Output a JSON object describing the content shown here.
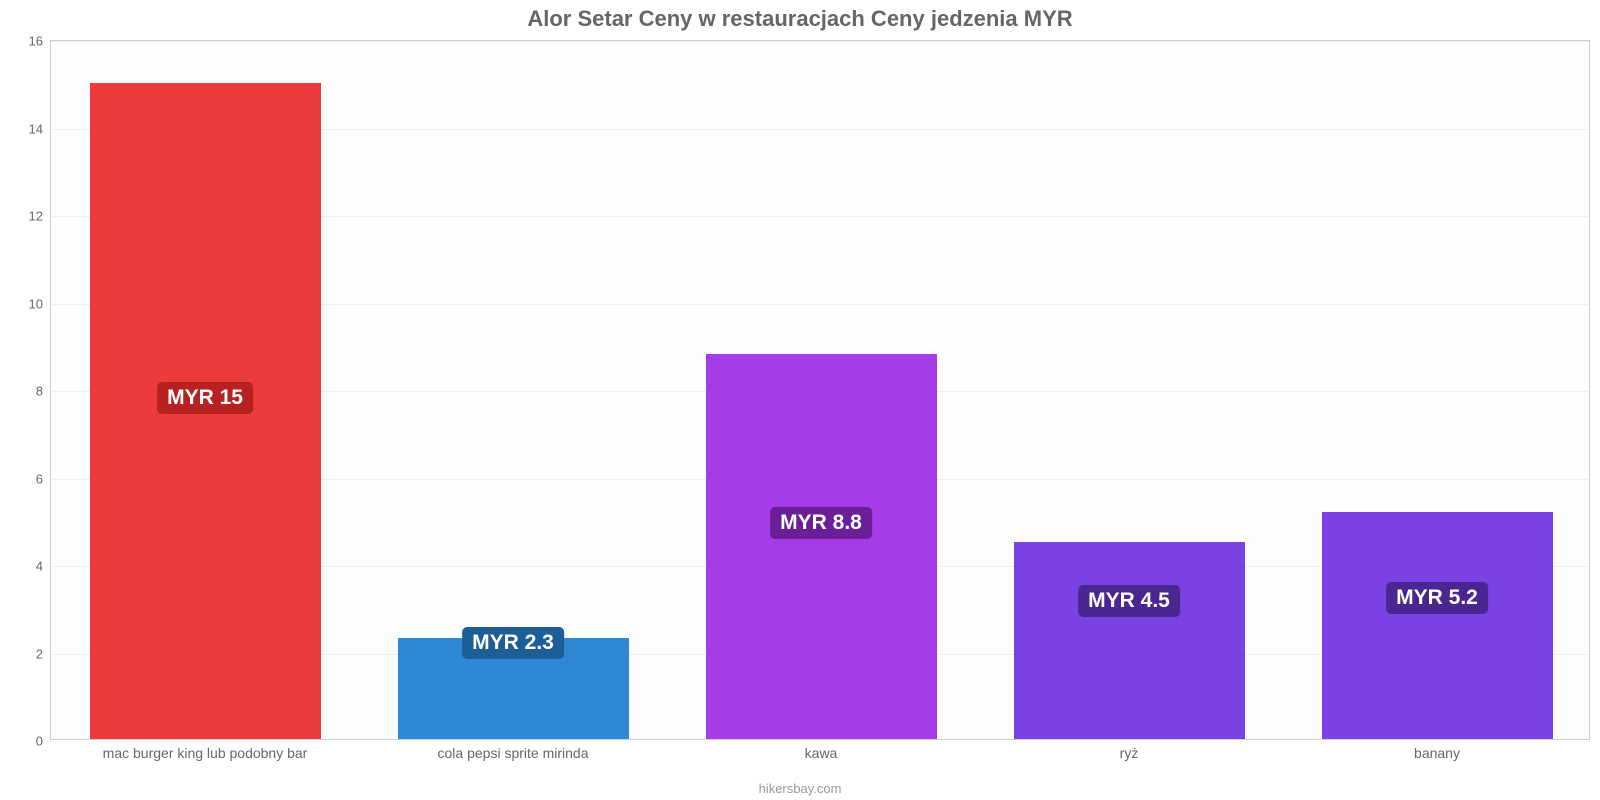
{
  "chart": {
    "type": "bar",
    "title": "Alor Setar Ceny w restauracjach Ceny jedzenia MYR",
    "title_fontsize": 22,
    "title_color": "#666666",
    "background_color": "#fdfdfd",
    "border_color": "#d0d0d0",
    "grid_color": "#eeeeee",
    "ylim": [
      0,
      16
    ],
    "yticks": [
      0,
      2,
      4,
      6,
      8,
      10,
      12,
      14,
      16
    ],
    "axis_font_color": "#666666",
    "axis_fontsize": 13,
    "bar_width_ratio": 0.75,
    "value_badge_fontsize": 21,
    "value_badge_text_color": "#ffffff",
    "categories": [
      "mac burger king lub podobny bar",
      "cola pepsi sprite mirinda",
      "kawa",
      "ryż",
      "banany"
    ],
    "values": [
      15,
      2.3,
      8.8,
      4.5,
      5.2
    ],
    "value_labels": [
      "MYR 15",
      "MYR 2.3",
      "MYR 8.8",
      "MYR 4.5",
      "MYR 5.2"
    ],
    "bar_colors": [
      "#eb3b3b",
      "#2f88d6",
      "#a63be8",
      "#7a42e3",
      "#7a42e3"
    ],
    "badge_colors": [
      "#b72121",
      "#1d5e96",
      "#6a1f99",
      "#4a2690",
      "#4a2690"
    ],
    "badge_y_from_bottom_ratio": [
      0.52,
      0.95,
      0.56,
      0.7,
      0.62
    ],
    "footer": "hikersbay.com",
    "footer_color": "#999999",
    "footer_fontsize": 13
  }
}
